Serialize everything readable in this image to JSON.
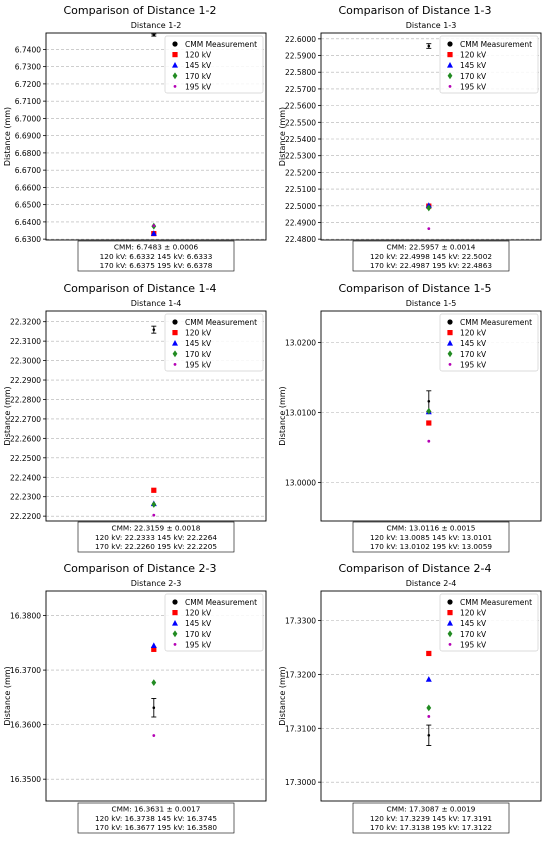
{
  "figure": {
    "legend_entries": [
      {
        "label": "CMM Measurement",
        "marker": "circle",
        "color": "#000000"
      },
      {
        "label": "120 kV",
        "marker": "square",
        "color": "#ff0000"
      },
      {
        "label": "145 kV",
        "marker": "triangle",
        "color": "#0000ff"
      },
      {
        "label": "170 kV",
        "marker": "diamond",
        "color": "#228b22"
      },
      {
        "label": "195 kV",
        "marker": "star",
        "color": "#b400b4"
      }
    ]
  },
  "chart_data": [
    {
      "type": "scatter",
      "title": "Comparison of Distance 1-2",
      "subtitle": "Distance 1-2",
      "xlabel": "",
      "ylabel": "Distance (mm)",
      "ylim": [
        6.6295,
        6.7495
      ],
      "yticks": [
        "6.6300",
        "6.6400",
        "6.6500",
        "6.6600",
        "6.6700",
        "6.6800",
        "6.6900",
        "6.7000",
        "6.7100",
        "6.7200",
        "6.7300",
        "6.7400"
      ],
      "grid": "horizontal",
      "legend_position": "top-right",
      "series": [
        {
          "name": "CMM Measurement",
          "value": 6.7483,
          "error": 0.0006
        },
        {
          "name": "120 kV",
          "value": 6.6332
        },
        {
          "name": "145 kV",
          "value": 6.6333
        },
        {
          "name": "170 kV",
          "value": 6.6375
        },
        {
          "name": "195 kV",
          "value": 6.6378
        }
      ],
      "summary": [
        "CMM: 6.7483 ± 0.0006",
        "120 kV: 6.6332 145 kV: 6.6333",
        "170 kV: 6.6375 195 kV: 6.6378"
      ]
    },
    {
      "type": "scatter",
      "title": "Comparison of Distance 1-3",
      "subtitle": "Distance 1-3",
      "xlabel": "",
      "ylabel": "Distance (mm)",
      "ylim": [
        22.4795,
        22.6035
      ],
      "yticks": [
        "22.4800",
        "22.4900",
        "22.5000",
        "22.5100",
        "22.5200",
        "22.5300",
        "22.5400",
        "22.5500",
        "22.5600",
        "22.5700",
        "22.5800",
        "22.5900",
        "22.6000"
      ],
      "grid": "horizontal",
      "legend_position": "top-right",
      "series": [
        {
          "name": "CMM Measurement",
          "value": 22.5957,
          "error": 0.0014
        },
        {
          "name": "120 kV",
          "value": 22.4998
        },
        {
          "name": "145 kV",
          "value": 22.5002
        },
        {
          "name": "170 kV",
          "value": 22.4987
        },
        {
          "name": "195 kV",
          "value": 22.4863
        }
      ],
      "summary": [
        "CMM: 22.5957 ± 0.0014",
        "120 kV: 22.4998 145 kV: 22.5002",
        "170 kV: 22.4987 195 kV: 22.4863"
      ]
    },
    {
      "type": "scatter",
      "title": "Comparison of Distance 1-4",
      "subtitle": "Distance 1-4",
      "xlabel": "",
      "ylabel": "Distance (mm)",
      "ylim": [
        22.2175,
        22.3255
      ],
      "yticks": [
        "22.2200",
        "22.2300",
        "22.2400",
        "22.2500",
        "22.2600",
        "22.2700",
        "22.2800",
        "22.2900",
        "22.3000",
        "22.3100",
        "22.3200"
      ],
      "grid": "horizontal",
      "legend_position": "top-right",
      "series": [
        {
          "name": "CMM Measurement",
          "value": 22.3159,
          "error": 0.0018
        },
        {
          "name": "120 kV",
          "value": 22.2333
        },
        {
          "name": "145 kV",
          "value": 22.2264
        },
        {
          "name": "170 kV",
          "value": 22.226
        },
        {
          "name": "195 kV",
          "value": 22.2205
        }
      ],
      "summary": [
        "CMM: 22.3159 ± 0.0018",
        "120 kV: 22.2333 145 kV: 22.2264",
        "170 kV: 22.2260 195 kV: 22.2205"
      ]
    },
    {
      "type": "scatter",
      "title": "Comparison of Distance 1-5",
      "subtitle": "Distance 1-5",
      "xlabel": "",
      "ylabel": "Distance (mm)",
      "ylim": [
        12.9945,
        13.0245
      ],
      "yticks": [
        "13.0000",
        "13.0100",
        "13.0200"
      ],
      "grid": "horizontal",
      "legend_position": "top-right",
      "series": [
        {
          "name": "CMM Measurement",
          "value": 13.0116,
          "error": 0.0015
        },
        {
          "name": "120 kV",
          "value": 13.0085
        },
        {
          "name": "145 kV",
          "value": 13.0101
        },
        {
          "name": "170 kV",
          "value": 13.0102
        },
        {
          "name": "195 kV",
          "value": 13.0059
        }
      ],
      "summary": [
        "CMM: 13.0116 ± 0.0015",
        "120 kV: 13.0085 145 kV: 13.0101",
        "170 kV: 13.0102 195 kV: 13.0059"
      ]
    },
    {
      "type": "scatter",
      "title": "Comparison of Distance 2-3",
      "subtitle": "Distance 2-3",
      "xlabel": "",
      "ylabel": "Distance (mm)",
      "ylim": [
        16.346,
        16.3845
      ],
      "yticks": [
        "16.3500",
        "16.3600",
        "16.3700",
        "16.3800"
      ],
      "grid": "horizontal",
      "legend_position": "top-right",
      "series": [
        {
          "name": "CMM Measurement",
          "value": 16.3631,
          "error": 0.0017
        },
        {
          "name": "120 kV",
          "value": 16.3738
        },
        {
          "name": "145 kV",
          "value": 16.3745
        },
        {
          "name": "170 kV",
          "value": 16.3677
        },
        {
          "name": "195 kV",
          "value": 16.358
        }
      ],
      "summary": [
        "CMM: 16.3631 ± 0.0017",
        "120 kV: 16.3738 145 kV: 16.3745",
        "170 kV: 16.3677 195 kV: 16.3580"
      ]
    },
    {
      "type": "scatter",
      "title": "Comparison of Distance 2-4",
      "subtitle": "Distance 2-4",
      "xlabel": "",
      "ylabel": "Distance (mm)",
      "ylim": [
        17.2965,
        17.3355
      ],
      "yticks": [
        "17.3000",
        "17.3100",
        "17.3200",
        "17.3300"
      ],
      "grid": "horizontal",
      "legend_position": "top-right",
      "series": [
        {
          "name": "CMM Measurement",
          "value": 17.3087,
          "error": 0.0019
        },
        {
          "name": "120 kV",
          "value": 17.3239
        },
        {
          "name": "145 kV",
          "value": 17.3191
        },
        {
          "name": "170 kV",
          "value": 17.3138
        },
        {
          "name": "195 kV",
          "value": 17.3122
        }
      ],
      "summary": [
        "CMM: 17.3087 ± 0.0019",
        "120 kV: 17.3239 145 kV: 17.3191",
        "170 kV: 17.3138 195 kV: 17.3122"
      ]
    }
  ]
}
